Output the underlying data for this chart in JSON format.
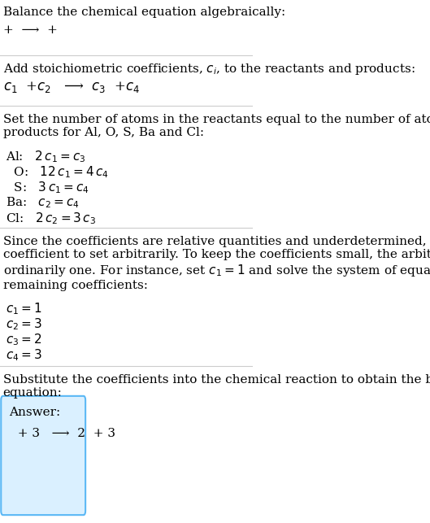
{
  "title": "Balance the chemical equation algebraically:",
  "line1": "+  ⟶  +",
  "section2_header": "Add stoichiometric coefficients, $c_i$, to the reactants and products:",
  "section2_eq": "$c_1$  +$c_2$   ⟶  $c_3$  +$c_4$",
  "section3_header": "Set the number of atoms in the reactants equal to the number of atoms in the\nproducts for Al, O, S, Ba and Cl:",
  "section3_lines": [
    "Al:   $2\\,c_1 = c_3$",
    "  O:   $12\\,c_1 = 4\\,c_4$",
    "  S:   $3\\,c_1 = c_4$",
    "Ba:   $c_2 = c_4$",
    "Cl:   $2\\,c_2 = 3\\,c_3$"
  ],
  "section4_header": "Since the coefficients are relative quantities and underdetermined, choose a\ncoefficient to set arbitrarily. To keep the coefficients small, the arbitrary value is\nordinarily one. For instance, set $c_1 = 1$ and solve the system of equations for the\nremaining coefficients:",
  "section4_lines": [
    "$c_1 = 1$",
    "$c_2 = 3$",
    "$c_3 = 2$",
    "$c_4 = 3$"
  ],
  "section5_header": "Substitute the coefficients into the chemical reaction to obtain the balanced\nequation:",
  "answer_label": "Answer:",
  "answer_eq": "  + 3   ⟶  2  + 3",
  "bg_color": "#ffffff",
  "text_color": "#000000",
  "line_color": "#cccccc",
  "answer_box_color": "#daf0ff",
  "answer_box_border": "#5bb8f5",
  "font_size": 11,
  "small_font_size": 10
}
